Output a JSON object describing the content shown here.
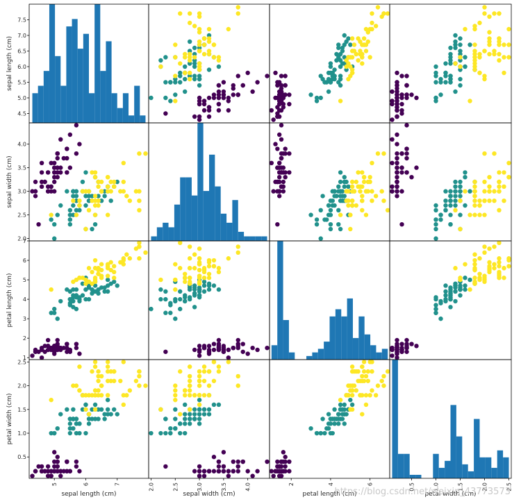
{
  "chart_data": {
    "type": "scatter-matrix",
    "variables": [
      "sepal length (cm)",
      "sepal width (cm)",
      "petal length (cm)",
      "petal width (cm)"
    ],
    "ranges": [
      [
        4.2,
        8.0
      ],
      [
        1.95,
        4.45
      ],
      [
        0.9,
        7.0
      ],
      [
        0.05,
        2.55
      ]
    ],
    "ticks": [
      [
        "4.5",
        "5.0",
        "5.5",
        "6.0",
        "6.5",
        "7.0",
        "7.5"
      ],
      [
        "2.0",
        "2.5",
        "3.0",
        "3.5",
        "4.0"
      ],
      [
        "1",
        "2",
        "3",
        "4",
        "5",
        "6",
        "7"
      ],
      [
        "0.5",
        "1.0",
        "1.5",
        "2.0",
        "2.5"
      ]
    ],
    "xticks_bottom": [
      [
        "5",
        "6",
        "7"
      ],
      [
        "2.0",
        "2.5",
        "3.0",
        "3.5",
        "4.0"
      ],
      [
        "2",
        "4",
        "6"
      ],
      [
        "0.5",
        "1.0",
        "1.5",
        "2.0",
        "2.5"
      ]
    ],
    "class_colors": [
      "#440154",
      "#21918c",
      "#fde725"
    ],
    "hist_color": "#1f77b4",
    "hist_bins": 20,
    "data": [
      [
        5.1,
        3.5,
        1.4,
        0.2,
        0
      ],
      [
        4.9,
        3.0,
        1.4,
        0.2,
        0
      ],
      [
        4.7,
        3.2,
        1.3,
        0.2,
        0
      ],
      [
        4.6,
        3.1,
        1.5,
        0.2,
        0
      ],
      [
        5.0,
        3.6,
        1.4,
        0.2,
        0
      ],
      [
        5.4,
        3.9,
        1.7,
        0.4,
        0
      ],
      [
        4.6,
        3.4,
        1.4,
        0.3,
        0
      ],
      [
        5.0,
        3.4,
        1.5,
        0.2,
        0
      ],
      [
        4.4,
        2.9,
        1.4,
        0.2,
        0
      ],
      [
        4.9,
        3.1,
        1.5,
        0.1,
        0
      ],
      [
        5.4,
        3.7,
        1.5,
        0.2,
        0
      ],
      [
        4.8,
        3.4,
        1.6,
        0.2,
        0
      ],
      [
        4.8,
        3.0,
        1.4,
        0.1,
        0
      ],
      [
        4.3,
        3.0,
        1.1,
        0.1,
        0
      ],
      [
        5.8,
        4.0,
        1.2,
        0.2,
        0
      ],
      [
        5.7,
        4.4,
        1.5,
        0.4,
        0
      ],
      [
        5.4,
        3.9,
        1.3,
        0.4,
        0
      ],
      [
        5.1,
        3.5,
        1.4,
        0.3,
        0
      ],
      [
        5.7,
        3.8,
        1.7,
        0.3,
        0
      ],
      [
        5.1,
        3.8,
        1.5,
        0.3,
        0
      ],
      [
        5.4,
        3.4,
        1.7,
        0.2,
        0
      ],
      [
        5.1,
        3.7,
        1.5,
        0.4,
        0
      ],
      [
        4.6,
        3.6,
        1.0,
        0.2,
        0
      ],
      [
        5.1,
        3.3,
        1.7,
        0.5,
        0
      ],
      [
        4.8,
        3.4,
        1.9,
        0.2,
        0
      ],
      [
        5.0,
        3.0,
        1.6,
        0.2,
        0
      ],
      [
        5.0,
        3.4,
        1.6,
        0.4,
        0
      ],
      [
        5.2,
        3.5,
        1.5,
        0.2,
        0
      ],
      [
        5.2,
        3.4,
        1.4,
        0.2,
        0
      ],
      [
        4.7,
        3.2,
        1.6,
        0.2,
        0
      ],
      [
        4.8,
        3.1,
        1.6,
        0.2,
        0
      ],
      [
        5.4,
        3.4,
        1.5,
        0.4,
        0
      ],
      [
        5.2,
        4.1,
        1.5,
        0.1,
        0
      ],
      [
        5.5,
        4.2,
        1.4,
        0.2,
        0
      ],
      [
        4.9,
        3.1,
        1.5,
        0.2,
        0
      ],
      [
        5.0,
        3.2,
        1.2,
        0.2,
        0
      ],
      [
        5.5,
        3.5,
        1.3,
        0.2,
        0
      ],
      [
        4.9,
        3.6,
        1.4,
        0.1,
        0
      ],
      [
        4.4,
        3.0,
        1.3,
        0.2,
        0
      ],
      [
        5.1,
        3.4,
        1.5,
        0.2,
        0
      ],
      [
        5.0,
        3.5,
        1.3,
        0.3,
        0
      ],
      [
        4.5,
        2.3,
        1.3,
        0.3,
        0
      ],
      [
        4.4,
        3.2,
        1.3,
        0.2,
        0
      ],
      [
        5.0,
        3.5,
        1.6,
        0.6,
        0
      ],
      [
        5.1,
        3.8,
        1.9,
        0.4,
        0
      ],
      [
        4.8,
        3.0,
        1.4,
        0.3,
        0
      ],
      [
        5.1,
        3.8,
        1.6,
        0.2,
        0
      ],
      [
        4.6,
        3.2,
        1.4,
        0.2,
        0
      ],
      [
        5.3,
        3.7,
        1.5,
        0.2,
        0
      ],
      [
        5.0,
        3.3,
        1.4,
        0.2,
        0
      ],
      [
        7.0,
        3.2,
        4.7,
        1.4,
        1
      ],
      [
        6.4,
        3.2,
        4.5,
        1.5,
        1
      ],
      [
        6.9,
        3.1,
        4.9,
        1.5,
        1
      ],
      [
        5.5,
        2.3,
        4.0,
        1.3,
        1
      ],
      [
        6.5,
        2.8,
        4.6,
        1.5,
        1
      ],
      [
        5.7,
        2.8,
        4.5,
        1.3,
        1
      ],
      [
        6.3,
        3.3,
        4.7,
        1.6,
        1
      ],
      [
        4.9,
        2.4,
        3.3,
        1.0,
        1
      ],
      [
        6.6,
        2.9,
        4.6,
        1.3,
        1
      ],
      [
        5.2,
        2.7,
        3.9,
        1.4,
        1
      ],
      [
        5.0,
        2.0,
        3.5,
        1.0,
        1
      ],
      [
        5.9,
        3.0,
        4.2,
        1.5,
        1
      ],
      [
        6.0,
        2.2,
        4.0,
        1.0,
        1
      ],
      [
        6.1,
        2.9,
        4.7,
        1.4,
        1
      ],
      [
        5.6,
        2.9,
        3.6,
        1.3,
        1
      ],
      [
        6.7,
        3.1,
        4.4,
        1.4,
        1
      ],
      [
        5.6,
        3.0,
        4.5,
        1.5,
        1
      ],
      [
        5.8,
        2.7,
        4.1,
        1.0,
        1
      ],
      [
        6.2,
        2.2,
        4.5,
        1.5,
        1
      ],
      [
        5.6,
        2.5,
        3.9,
        1.1,
        1
      ],
      [
        5.9,
        3.2,
        4.8,
        1.8,
        1
      ],
      [
        6.1,
        2.8,
        4.0,
        1.3,
        1
      ],
      [
        6.3,
        2.5,
        4.9,
        1.5,
        1
      ],
      [
        6.1,
        2.8,
        4.7,
        1.2,
        1
      ],
      [
        6.4,
        2.9,
        4.3,
        1.3,
        1
      ],
      [
        6.6,
        3.0,
        4.4,
        1.4,
        1
      ],
      [
        6.8,
        2.8,
        4.8,
        1.4,
        1
      ],
      [
        6.7,
        3.0,
        5.0,
        1.7,
        1
      ],
      [
        6.0,
        2.9,
        4.5,
        1.5,
        1
      ],
      [
        5.7,
        2.6,
        3.5,
        1.0,
        1
      ],
      [
        5.5,
        2.4,
        3.8,
        1.1,
        1
      ],
      [
        5.5,
        2.4,
        3.7,
        1.0,
        1
      ],
      [
        5.8,
        2.7,
        3.9,
        1.2,
        1
      ],
      [
        6.0,
        2.7,
        5.1,
        1.6,
        1
      ],
      [
        5.4,
        3.0,
        4.5,
        1.5,
        1
      ],
      [
        6.0,
        3.4,
        4.5,
        1.6,
        1
      ],
      [
        6.7,
        3.1,
        4.7,
        1.5,
        1
      ],
      [
        6.3,
        2.3,
        4.4,
        1.3,
        1
      ],
      [
        5.6,
        3.0,
        4.1,
        1.3,
        1
      ],
      [
        5.5,
        2.5,
        4.0,
        1.3,
        1
      ],
      [
        5.5,
        2.6,
        4.4,
        1.2,
        1
      ],
      [
        6.1,
        3.0,
        4.6,
        1.4,
        1
      ],
      [
        5.8,
        2.6,
        4.0,
        1.2,
        1
      ],
      [
        5.0,
        2.3,
        3.3,
        1.0,
        1
      ],
      [
        5.6,
        2.7,
        4.2,
        1.3,
        1
      ],
      [
        5.7,
        3.0,
        4.2,
        1.2,
        1
      ],
      [
        5.7,
        2.9,
        4.2,
        1.3,
        1
      ],
      [
        6.2,
        2.9,
        4.3,
        1.3,
        1
      ],
      [
        5.1,
        2.5,
        3.0,
        1.1,
        1
      ],
      [
        5.7,
        2.8,
        4.1,
        1.3,
        1
      ],
      [
        6.3,
        3.3,
        6.0,
        2.5,
        2
      ],
      [
        5.8,
        2.7,
        5.1,
        1.9,
        2
      ],
      [
        7.1,
        3.0,
        5.9,
        2.1,
        2
      ],
      [
        6.3,
        2.9,
        5.6,
        1.8,
        2
      ],
      [
        6.5,
        3.0,
        5.8,
        2.2,
        2
      ],
      [
        7.6,
        3.0,
        6.6,
        2.1,
        2
      ],
      [
        4.9,
        2.5,
        4.5,
        1.7,
        2
      ],
      [
        7.3,
        2.9,
        6.3,
        1.8,
        2
      ],
      [
        6.7,
        2.5,
        5.8,
        1.8,
        2
      ],
      [
        7.2,
        3.6,
        6.1,
        2.5,
        2
      ],
      [
        6.5,
        3.2,
        5.1,
        2.0,
        2
      ],
      [
        6.4,
        2.7,
        5.3,
        1.9,
        2
      ],
      [
        6.8,
        3.0,
        5.5,
        2.1,
        2
      ],
      [
        5.7,
        2.5,
        5.0,
        2.0,
        2
      ],
      [
        5.8,
        2.8,
        5.1,
        2.4,
        2
      ],
      [
        6.4,
        3.2,
        5.3,
        2.3,
        2
      ],
      [
        6.5,
        3.0,
        5.5,
        1.8,
        2
      ],
      [
        7.7,
        3.8,
        6.7,
        2.2,
        2
      ],
      [
        7.7,
        2.6,
        6.9,
        2.3,
        2
      ],
      [
        6.0,
        2.2,
        5.0,
        1.5,
        2
      ],
      [
        6.9,
        3.2,
        5.7,
        2.3,
        2
      ],
      [
        5.6,
        2.8,
        4.9,
        2.0,
        2
      ],
      [
        7.7,
        2.8,
        6.7,
        2.0,
        2
      ],
      [
        6.3,
        2.7,
        4.9,
        1.8,
        2
      ],
      [
        6.7,
        3.3,
        5.7,
        2.1,
        2
      ],
      [
        7.2,
        3.2,
        6.0,
        1.8,
        2
      ],
      [
        6.2,
        2.8,
        4.8,
        1.8,
        2
      ],
      [
        6.1,
        3.0,
        4.9,
        1.8,
        2
      ],
      [
        6.4,
        2.8,
        5.6,
        2.1,
        2
      ],
      [
        7.2,
        3.0,
        5.8,
        1.6,
        2
      ],
      [
        7.4,
        2.8,
        6.1,
        1.9,
        2
      ],
      [
        7.9,
        3.8,
        6.4,
        2.0,
        2
      ],
      [
        6.4,
        2.8,
        5.6,
        2.2,
        2
      ],
      [
        6.3,
        2.8,
        5.1,
        1.5,
        2
      ],
      [
        6.1,
        2.6,
        5.6,
        1.4,
        2
      ],
      [
        7.7,
        3.0,
        6.1,
        2.3,
        2
      ],
      [
        6.3,
        3.4,
        5.6,
        2.4,
        2
      ],
      [
        6.4,
        3.1,
        5.5,
        1.8,
        2
      ],
      [
        6.0,
        3.0,
        4.8,
        1.8,
        2
      ],
      [
        6.9,
        3.1,
        5.4,
        2.1,
        2
      ],
      [
        6.7,
        3.1,
        5.6,
        2.4,
        2
      ],
      [
        6.9,
        3.1,
        5.1,
        2.3,
        2
      ],
      [
        5.8,
        2.7,
        5.1,
        1.9,
        2
      ],
      [
        6.8,
        3.2,
        5.9,
        2.3,
        2
      ],
      [
        6.7,
        3.3,
        5.7,
        2.5,
        2
      ],
      [
        6.7,
        3.0,
        5.2,
        2.3,
        2
      ],
      [
        6.3,
        2.5,
        5.0,
        1.9,
        2
      ],
      [
        6.5,
        3.0,
        5.2,
        2.0,
        2
      ],
      [
        6.2,
        3.4,
        5.4,
        2.3,
        2
      ],
      [
        5.9,
        3.0,
        5.1,
        1.8,
        2
      ]
    ]
  },
  "watermark": "https://blog.csdn.net/weixin_43773573"
}
